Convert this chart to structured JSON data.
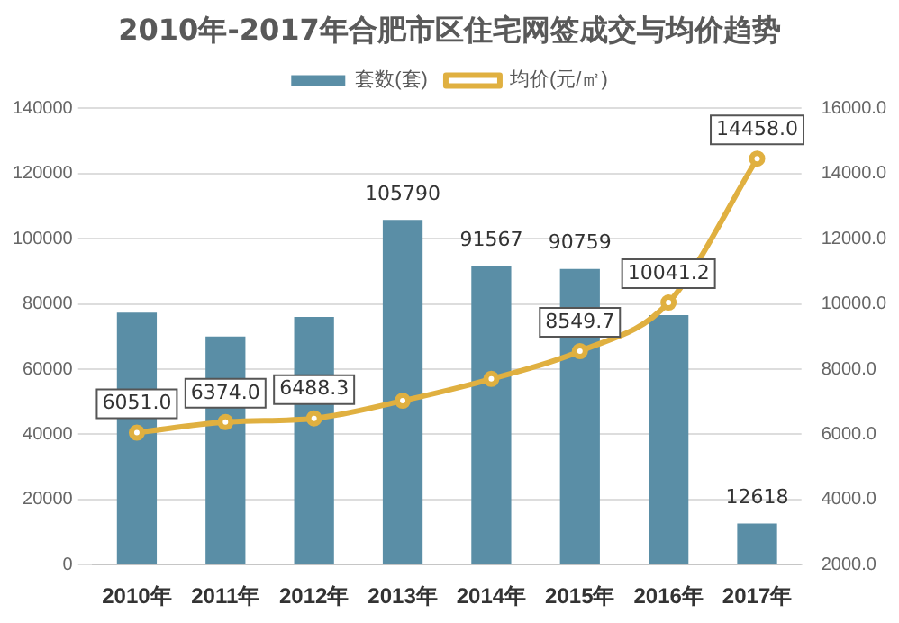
{
  "chart_data": {
    "type": "bar",
    "title": "2010年-2017年合肥市区住宅网签成交与均价趋势",
    "categories": [
      "2010年",
      "2011年",
      "2012年",
      "2013年",
      "2014年",
      "2015年",
      "2016年",
      "2017年"
    ],
    "series": [
      {
        "name": "套数(套)",
        "color": "#5a8ea6",
        "values": [
          77300,
          70000,
          76000,
          105790,
          91567,
          90759,
          76600,
          12618
        ],
        "value_labels": [
          null,
          null,
          null,
          "105790",
          "91567",
          "90759",
          null,
          "12618"
        ]
      },
      {
        "name": "均价(元/㎡)",
        "type": "line",
        "axis": "y2",
        "color": "#e0b040",
        "values": [
          6051.0,
          6374.0,
          6488.3,
          7030,
          7700,
          8549.7,
          10041.2,
          14458.0
        ],
        "value_labels": [
          "6051.0",
          "6374.0",
          "6488.3",
          null,
          null,
          "8549.7",
          "10041.2",
          "14458.0"
        ]
      }
    ],
    "ylim": [
      0,
      140000
    ],
    "yticks": [
      0,
      20000,
      40000,
      60000,
      80000,
      100000,
      120000,
      140000
    ],
    "y2lim": [
      2000,
      16000
    ],
    "y2ticks": [
      {
        "value": 2000,
        "label": "2000.0"
      },
      {
        "value": 4000,
        "label": "4000.0"
      },
      {
        "value": 6000,
        "label": "6000.0"
      },
      {
        "value": 8000,
        "label": "8000.0"
      },
      {
        "value": 10000,
        "label": "10000.0"
      },
      {
        "value": 12000,
        "label": "12000.0"
      },
      {
        "value": 14000,
        "label": "14000.0"
      },
      {
        "value": 16000,
        "label": "16000.0"
      }
    ],
    "grid": "y",
    "legend": "top",
    "marker": "circle"
  }
}
